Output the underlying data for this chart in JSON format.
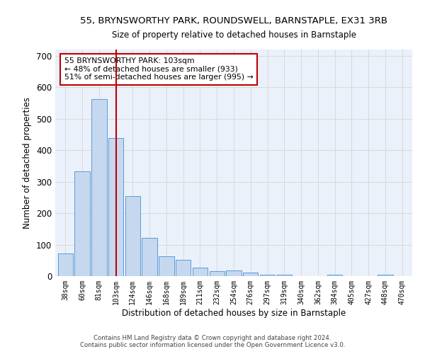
{
  "title": "55, BRYNSWORTHY PARK, ROUNDSWELL, BARNSTAPLE, EX31 3RB",
  "subtitle": "Size of property relative to detached houses in Barnstaple",
  "xlabel": "Distribution of detached houses by size in Barnstaple",
  "ylabel": "Number of detached properties",
  "footer_line1": "Contains HM Land Registry data © Crown copyright and database right 2024.",
  "footer_line2": "Contains public sector information licensed under the Open Government Licence v3.0.",
  "annotation_line1": "55 BRYNSWORTHY PARK: 103sqm",
  "annotation_line2": "← 48% of detached houses are smaller (933)",
  "annotation_line3": "51% of semi-detached houses are larger (995) →",
  "categories": [
    "38sqm",
    "60sqm",
    "81sqm",
    "103sqm",
    "124sqm",
    "146sqm",
    "168sqm",
    "189sqm",
    "211sqm",
    "232sqm",
    "254sqm",
    "276sqm",
    "297sqm",
    "319sqm",
    "340sqm",
    "362sqm",
    "384sqm",
    "405sqm",
    "427sqm",
    "448sqm",
    "470sqm"
  ],
  "values": [
    72,
    332,
    563,
    438,
    255,
    122,
    62,
    52,
    28,
    15,
    18,
    11,
    5,
    4,
    0,
    0,
    4,
    0,
    0,
    5,
    0
  ],
  "bar_color": "#c5d8f0",
  "bar_edge_color": "#5b9bd5",
  "highlight_bar_index": 3,
  "highlight_color": "#c00000",
  "grid_color": "#d9d9d9",
  "bg_color": "#eaf1fb",
  "annotation_box_color": "#c00000",
  "ylim": [
    0,
    720
  ],
  "yticks": [
    0,
    100,
    200,
    300,
    400,
    500,
    600,
    700
  ]
}
